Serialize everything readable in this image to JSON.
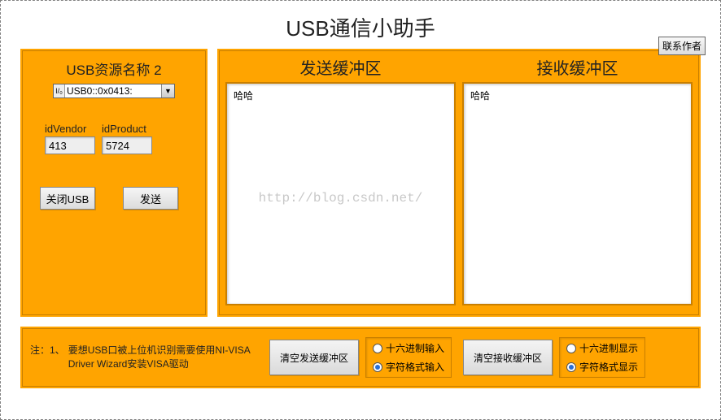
{
  "title": "USB通信小助手",
  "contact_button": "联系作者",
  "left": {
    "title_prefix": "USB资源名称",
    "title_count": "2",
    "combo_value": "USB0::0x0413:",
    "idVendor_label": "idVendor",
    "idVendor_value": "413",
    "idProduct_label": "idProduct",
    "idProduct_value": "5724",
    "close_btn": "关闭USB",
    "send_btn": "发送"
  },
  "send": {
    "title": "发送缓冲区",
    "content": "哈哈"
  },
  "recv": {
    "title": "接收缓冲区",
    "content": "哈哈"
  },
  "watermark": "http://blog.csdn.net/",
  "bottom": {
    "note_prefix": "注：1、",
    "note_text": "要想USB口被上位机识别需要使用NI-VISA Driver Wizard安装VISA驱动",
    "clear_send": "清空发送缓冲区",
    "clear_recv": "清空接收缓冲区",
    "input_hex": "十六进制输入",
    "input_text": "字符格式输入",
    "disp_hex": "十六进制显示",
    "disp_text": "字符格式显示",
    "input_selected": "text",
    "disp_selected": "text"
  },
  "colors": {
    "panel_bg": "#ffa400",
    "panel_border": "#c97f00"
  }
}
